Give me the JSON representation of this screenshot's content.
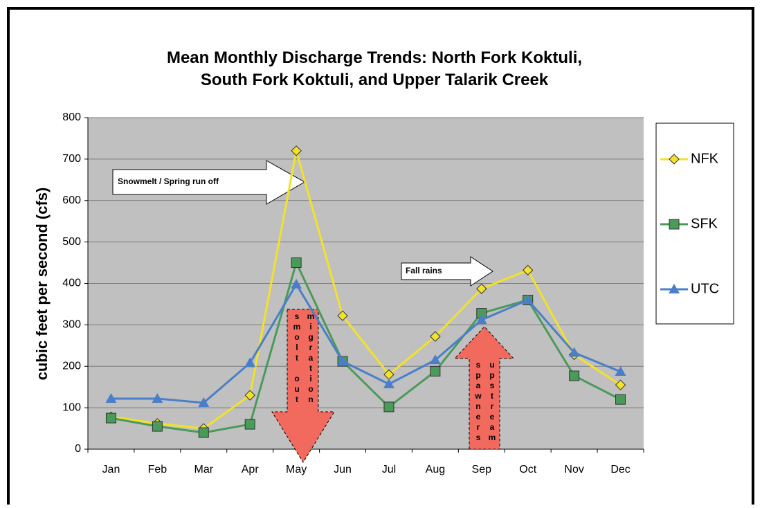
{
  "chart_data": {
    "type": "line",
    "title": "Mean Monthly Discharge Trends: North Fork Koktuli, South Fork Koktuli, and Upper Talarik Creek",
    "y_label": "cubic feet per second (cfs)",
    "categories": [
      "Jan",
      "Feb",
      "Mar",
      "Apr",
      "May",
      "Jun",
      "Jul",
      "Aug",
      "Sep",
      "Oct",
      "Nov",
      "Dec"
    ],
    "series": [
      {
        "name": "NFK",
        "color": "#f2e22a",
        "marker": "diamond",
        "values": [
          78,
          62,
          50,
          130,
          720,
          322,
          180,
          272,
          387,
          432,
          228,
          155
        ]
      },
      {
        "name": "SFK",
        "color": "#4a9a5a",
        "marker": "square",
        "values": [
          75,
          55,
          40,
          60,
          450,
          212,
          102,
          188,
          328,
          360,
          177,
          120
        ]
      },
      {
        "name": "UTC",
        "color": "#4a7fc8",
        "marker": "triangle",
        "values": [
          122,
          122,
          112,
          208,
          398,
          212,
          157,
          215,
          312,
          360,
          233,
          187
        ]
      }
    ],
    "ylim": [
      0,
      800
    ],
    "yticks": [
      0,
      100,
      200,
      300,
      400,
      500,
      600,
      700,
      800
    ],
    "grid": true,
    "legend": "right",
    "annotations": [
      "Snowmelt / Spring run off",
      "Fall rains",
      "smolt out migration",
      "spawners upstream"
    ]
  }
}
